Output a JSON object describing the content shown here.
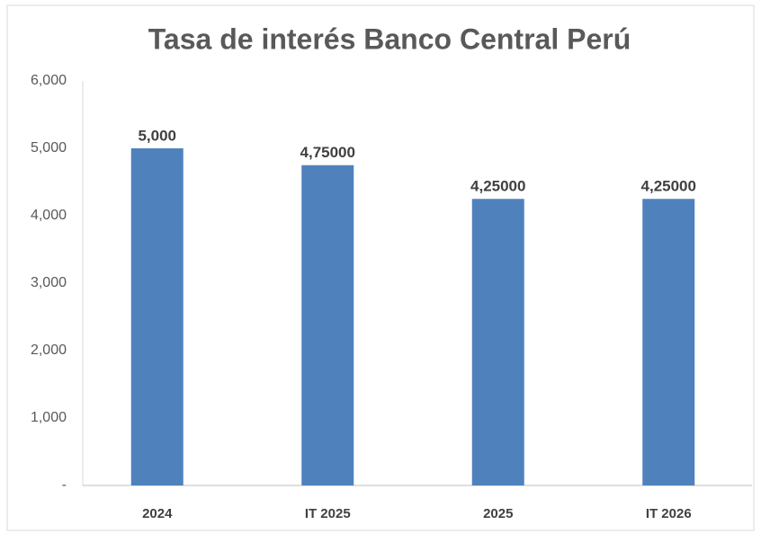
{
  "chart_data": {
    "type": "bar",
    "title": "Tasa de interés Banco Central Perú",
    "categories": [
      "2024",
      "IT 2025",
      "2025",
      "IT 2026"
    ],
    "values": [
      5,
      4.75,
      4.25,
      4.25
    ],
    "value_labels": [
      "5,000",
      "4,75000",
      "4,25000",
      "4,25000"
    ],
    "color": "#4f81bd",
    "ylim": [
      0,
      6
    ],
    "yticks": [
      {
        "value": 0,
        "label": "-"
      },
      {
        "value": 1,
        "label": "1,000"
      },
      {
        "value": 2,
        "label": "2,000"
      },
      {
        "value": 3,
        "label": "3,000"
      },
      {
        "value": 4,
        "label": "4,000"
      },
      {
        "value": 5,
        "label": "5,000"
      },
      {
        "value": 6,
        "label": "6,000"
      }
    ],
    "grid": false
  }
}
